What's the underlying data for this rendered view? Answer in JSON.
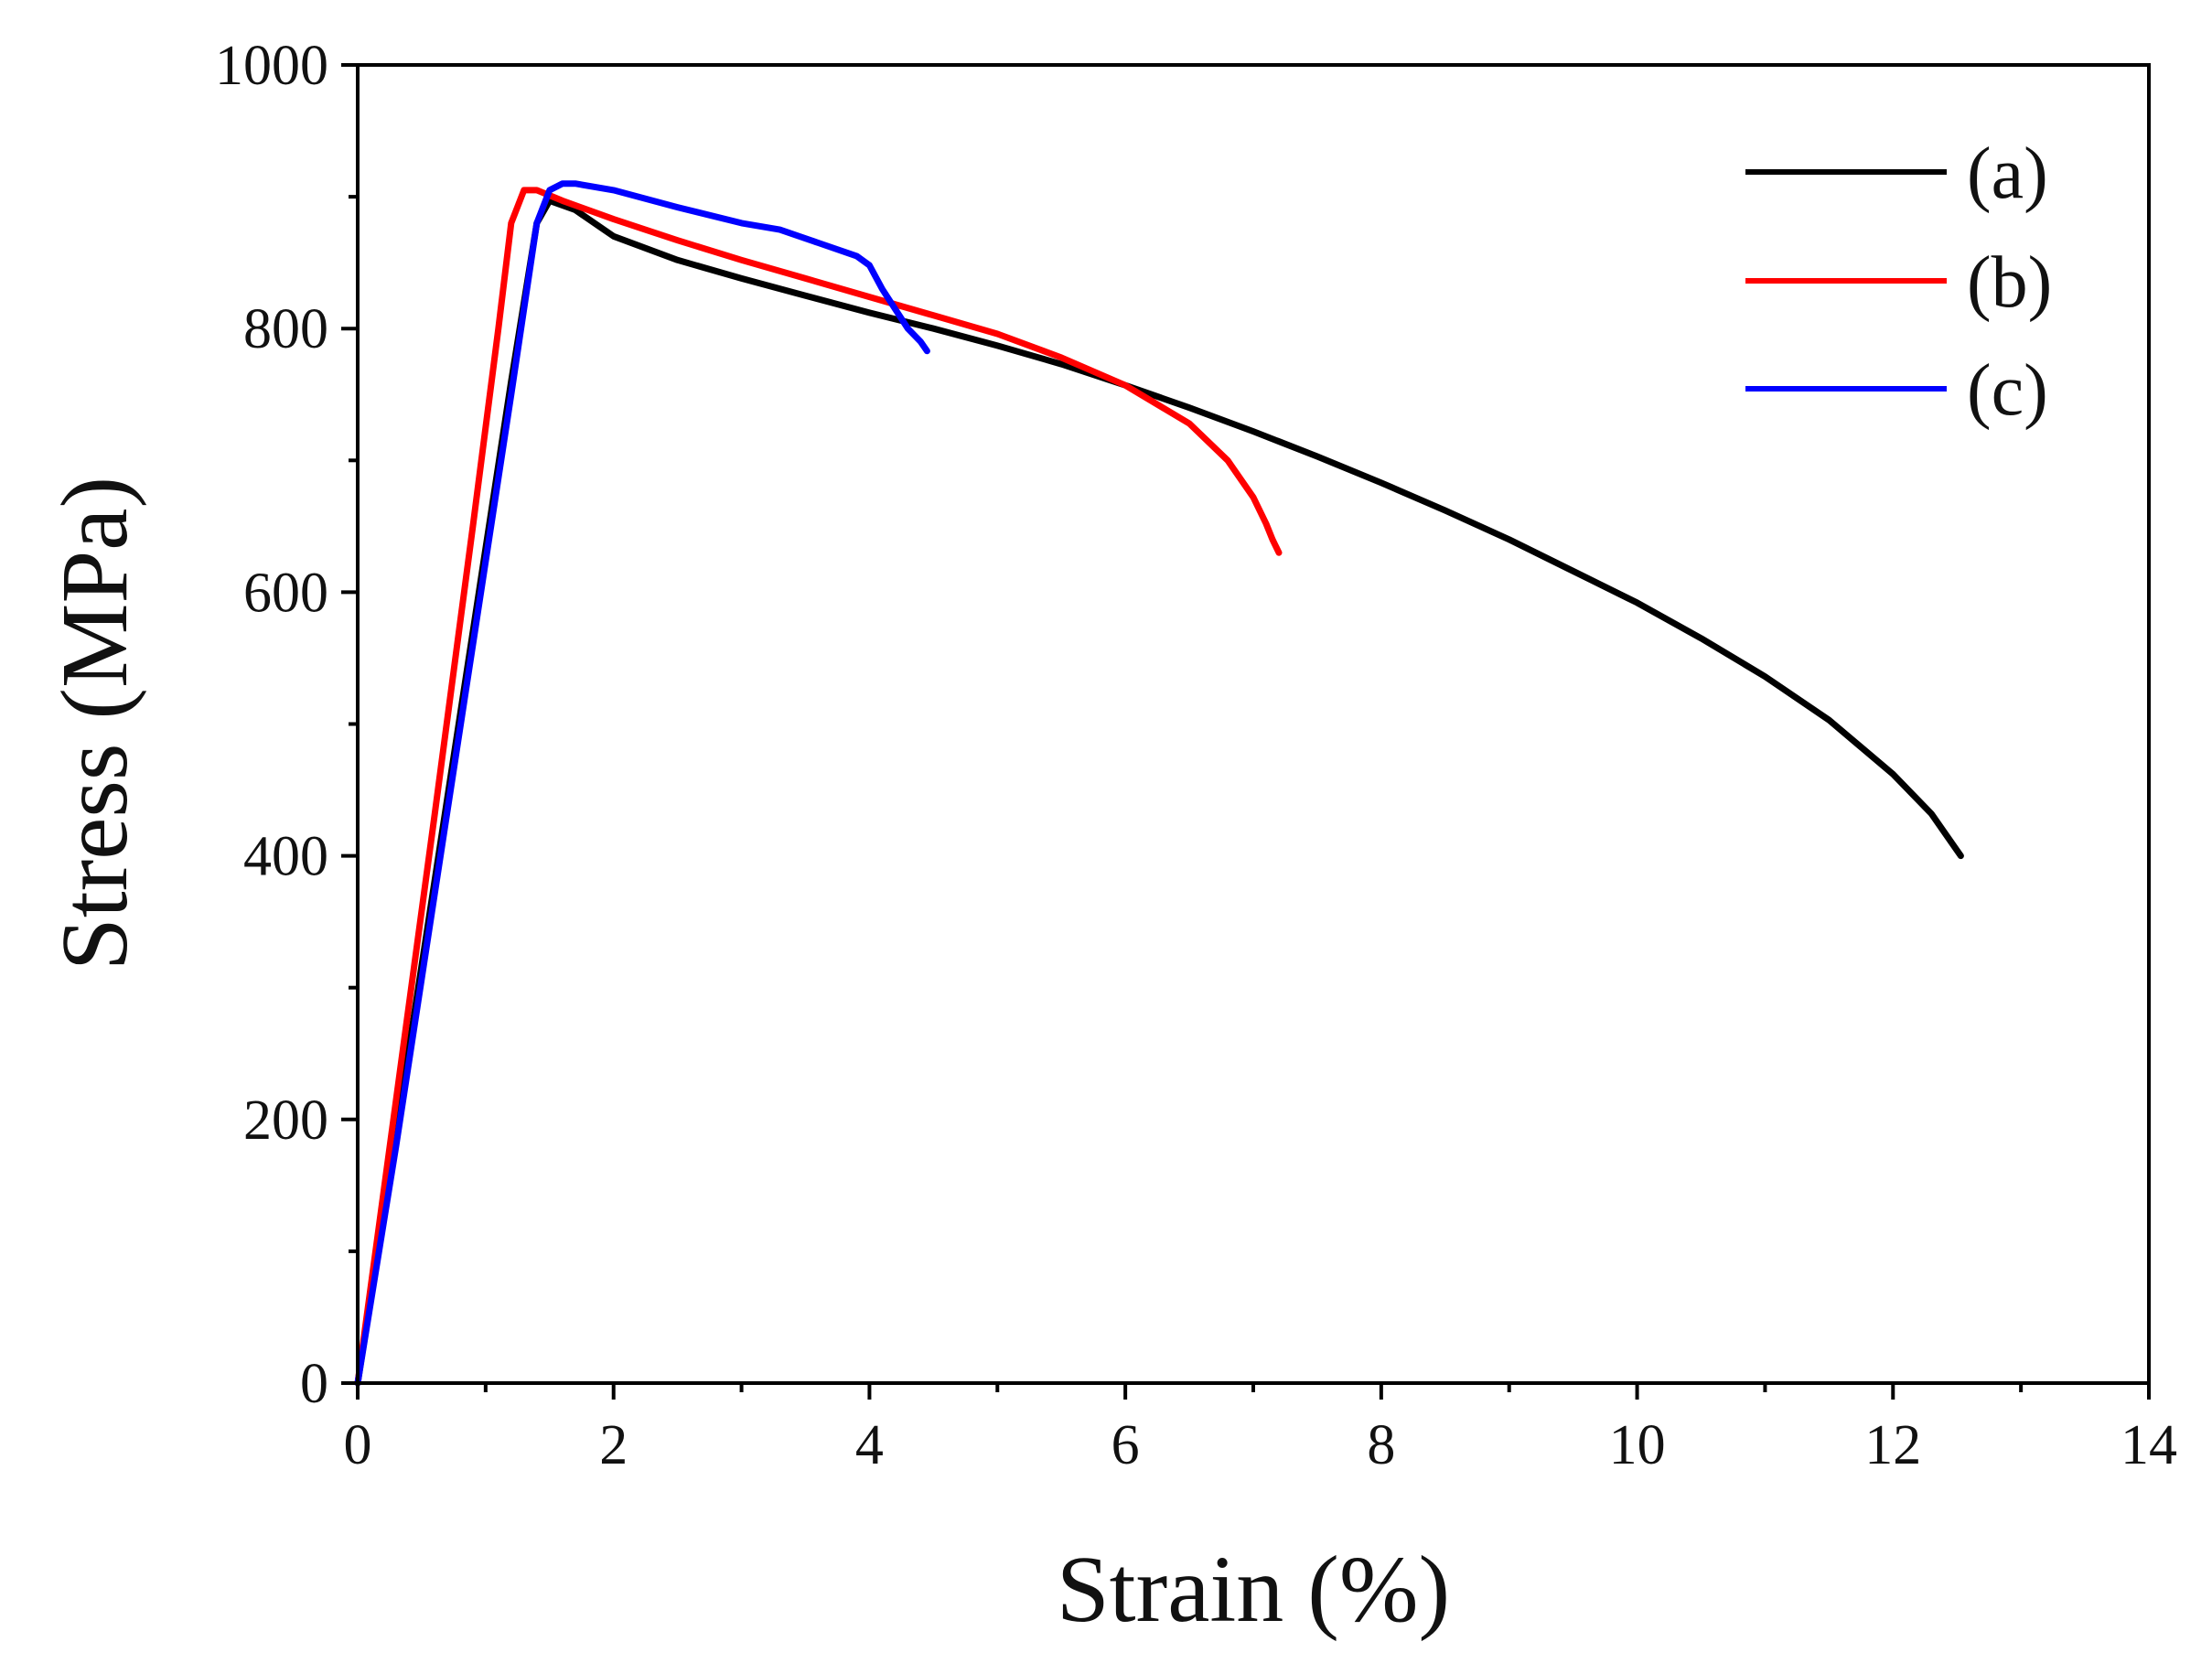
{
  "chart_data": {
    "type": "line",
    "title": "",
    "xlabel": "Strain (%)",
    "ylabel": "Stress (MPa)",
    "xlim": [
      0,
      14
    ],
    "ylim": [
      0,
      1000
    ],
    "x_ticks": [
      0,
      2,
      4,
      6,
      8,
      10,
      12,
      14
    ],
    "x_minor_ticks": [
      1,
      3,
      5,
      7,
      9,
      11,
      13
    ],
    "y_ticks": [
      0,
      200,
      400,
      600,
      800,
      1000
    ],
    "y_minor_ticks": [
      100,
      300,
      500,
      700,
      900
    ],
    "grid": false,
    "legend_position": "top-right",
    "series": [
      {
        "name": "(a)",
        "color": "#000000",
        "x": [
          0,
          0.3,
          0.6,
          0.9,
          1.2,
          1.4,
          1.5,
          1.7,
          2.0,
          2.5,
          3.0,
          3.5,
          4.0,
          4.5,
          5.0,
          5.5,
          6.0,
          6.5,
          7.0,
          7.5,
          8.0,
          8.5,
          9.0,
          9.5,
          10.0,
          10.5,
          11.0,
          11.5,
          12.0,
          12.3,
          12.53
        ],
        "y": [
          0,
          190,
          380,
          570,
          760,
          880,
          897,
          890,
          870,
          852,
          838,
          825,
          812,
          800,
          787,
          773,
          757,
          740,
          722,
          703,
          683,
          662,
          640,
          616,
          592,
          565,
          536,
          503,
          462,
          432,
          400
        ]
      },
      {
        "name": "(b)",
        "color": "#ff0000",
        "x": [
          0,
          0.3,
          0.6,
          0.9,
          1.1,
          1.2,
          1.3,
          1.4,
          1.6,
          2.0,
          2.5,
          3.0,
          3.5,
          4.0,
          4.5,
          5.0,
          5.5,
          6.0,
          6.5,
          6.8,
          7.0,
          7.1,
          7.15,
          7.2
        ],
        "y": [
          0,
          215,
          430,
          650,
          800,
          880,
          905,
          905,
          897,
          883,
          867,
          852,
          838,
          824,
          810,
          796,
          778,
          757,
          728,
          700,
          672,
          652,
          640,
          630
        ]
      },
      {
        "name": "(c)",
        "color": "#0000ff",
        "x": [
          0,
          0.3,
          0.6,
          0.9,
          1.2,
          1.4,
          1.5,
          1.6,
          1.7,
          2.0,
          2.5,
          3.0,
          3.3,
          3.6,
          3.9,
          4.0,
          4.1,
          4.2,
          4.3,
          4.4,
          4.45
        ],
        "y": [
          0,
          180,
          370,
          560,
          750,
          880,
          905,
          910,
          910,
          905,
          892,
          880,
          875,
          865,
          855,
          848,
          830,
          815,
          800,
          790,
          783
        ]
      }
    ]
  }
}
